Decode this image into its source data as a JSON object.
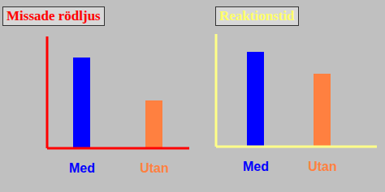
{
  "chart_data": [
    {
      "type": "bar",
      "title": "Missade rödljus",
      "categories": [
        "Med",
        "Utan"
      ],
      "values": [
        112,
        59
      ],
      "colors": [
        "#0000ff",
        "#ff8040"
      ],
      "ylim": [
        0,
        138
      ],
      "tick_labels": "x",
      "grid": false
    },
    {
      "type": "bar",
      "title": "Reaktionstid",
      "categories": [
        "Med",
        "Utan"
      ],
      "values": [
        117,
        90
      ],
      "colors": [
        "#0000ff",
        "#ff8040"
      ],
      "ylim": [
        0,
        139
      ],
      "tick_labels": "x",
      "grid": false
    }
  ]
}
